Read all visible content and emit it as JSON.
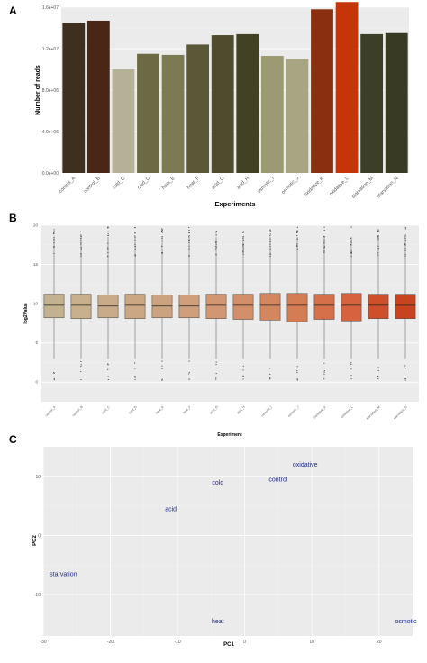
{
  "chart_data": [
    {
      "panel": "A",
      "type": "bar",
      "xlabel": "Experiments",
      "ylabel": "Number of reads",
      "ylim": [
        0,
        16000000
      ],
      "yticks": [
        0,
        4000000,
        8000000,
        12000000,
        16000000
      ],
      "ytick_labels": [
        "0.0e+00",
        "4.0e+06",
        "8.0e+06",
        "1.2e+07",
        "1.6e+07"
      ],
      "categories": [
        "control_A",
        "control_B",
        "cold_C",
        "cold_D",
        "heat_E",
        "heat_F",
        "acid_G",
        "acid_H",
        "osmotic_I",
        "osmotic_J",
        "oxidative_K",
        "oxidative_L",
        "starvation_M",
        "starvation_N"
      ],
      "values": [
        14500000,
        14700000,
        10000000,
        11500000,
        11400000,
        12400000,
        13300000,
        13400000,
        11300000,
        11000000,
        15800000,
        16500000,
        13400000,
        13500000
      ],
      "colors": [
        "#3e2f1e",
        "#4a2616",
        "#b5b196",
        "#6c6a44",
        "#7c7a52",
        "#5a5836",
        "#4e4c2c",
        "#434124",
        "#9c9a72",
        "#a8a682",
        "#8a3010",
        "#c53509",
        "#3c3e28",
        "#383a24"
      ],
      "grid": true
    },
    {
      "panel": "B",
      "type": "box",
      "xlabel": "Experiment",
      "ylabel": "log2Value",
      "ylim": [
        -2.5,
        20
      ],
      "yticks": [
        0,
        5,
        10,
        15,
        20
      ],
      "categories": [
        "control_A",
        "control_B",
        "cold_C",
        "cold_D",
        "heat_E",
        "heat_F",
        "acid_G",
        "acid_H",
        "osmotic_I",
        "osmotic_J",
        "oxidative_K",
        "oxidative_L",
        "starvation_M",
        "starvation_N"
      ],
      "boxes": [
        {
          "q1": 8.2,
          "median": 9.8,
          "q3": 11.2
        },
        {
          "q1": 8.1,
          "median": 9.8,
          "q3": 11.2
        },
        {
          "q1": 8.2,
          "median": 9.7,
          "q3": 11.1
        },
        {
          "q1": 8.1,
          "median": 9.8,
          "q3": 11.2
        },
        {
          "q1": 8.2,
          "median": 9.7,
          "q3": 11.1
        },
        {
          "q1": 8.2,
          "median": 9.7,
          "q3": 11.1
        },
        {
          "q1": 8.1,
          "median": 9.8,
          "q3": 11.2
        },
        {
          "q1": 8.0,
          "median": 9.8,
          "q3": 11.2
        },
        {
          "q1": 7.9,
          "median": 9.8,
          "q3": 11.3
        },
        {
          "q1": 7.7,
          "median": 9.8,
          "q3": 11.3
        },
        {
          "q1": 8.0,
          "median": 9.8,
          "q3": 11.2
        },
        {
          "q1": 7.8,
          "median": 9.8,
          "q3": 11.3
        },
        {
          "q1": 8.1,
          "median": 9.8,
          "q3": 11.2
        },
        {
          "q1": 8.1,
          "median": 9.8,
          "q3": 11.2
        }
      ],
      "colors": [
        "#c2b38e",
        "#c8b08c",
        "#c9ab88",
        "#cba784",
        "#cca37f",
        "#cf9f7b",
        "#d19773",
        "#d28f69",
        "#d3875f",
        "#d47d54",
        "#d5704a",
        "#d6623f",
        "#cf4f2c",
        "#c9431f"
      ],
      "grid": true
    },
    {
      "panel": "C",
      "type": "scatter",
      "xlabel": "PC1",
      "ylabel": "PC2",
      "xlim": [
        -30,
        25
      ],
      "ylim": [
        -17,
        15
      ],
      "xticks": [
        -30,
        -20,
        -10,
        0,
        10,
        20
      ],
      "yticks": [
        -10,
        0,
        10
      ],
      "points": [
        {
          "label": "oxidative",
          "x": 9,
          "y": 12
        },
        {
          "label": "cold",
          "x": -4,
          "y": 9
        },
        {
          "label": "control",
          "x": 5,
          "y": 9.5
        },
        {
          "label": "acid",
          "x": -11,
          "y": 4.5
        },
        {
          "label": "starvation",
          "x": -27,
          "y": -6.5
        },
        {
          "label": "heat",
          "x": -4,
          "y": -14.5
        },
        {
          "label": "osmotic",
          "x": 24,
          "y": -14.5
        }
      ],
      "grid": true
    }
  ],
  "panel_labels": [
    "A",
    "B",
    "C"
  ]
}
